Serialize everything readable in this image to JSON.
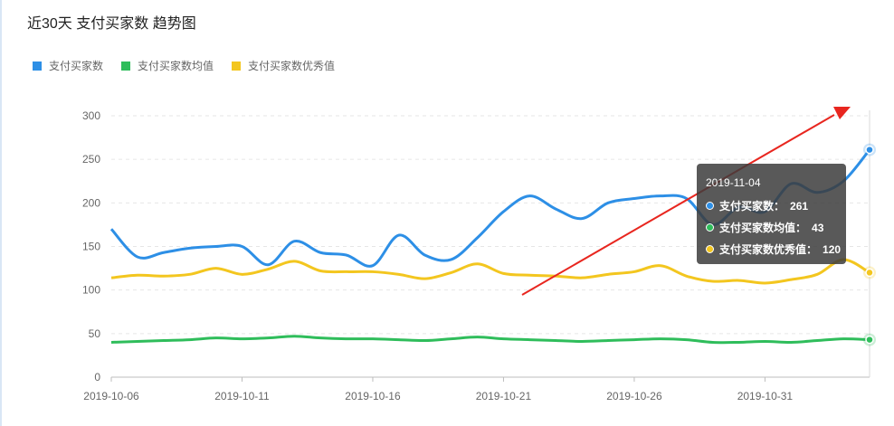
{
  "title": "近30天 支付买家数 趋势图",
  "legend": [
    {
      "label": "支付买家数",
      "color": "#2d8fe6"
    },
    {
      "label": "支付买家数均值",
      "color": "#2fbd5b"
    },
    {
      "label": "支付买家数优秀值",
      "color": "#f3c61f"
    }
  ],
  "tooltip": {
    "date": "2019-11-04",
    "rows": [
      {
        "label": "支付买家数：",
        "value": "261",
        "color": "#2d8fe6"
      },
      {
        "label": "支付买家数均值：",
        "value": "43",
        "color": "#2fbd5b"
      },
      {
        "label": "支付买家数优秀值：",
        "value": "120",
        "color": "#f3c61f"
      }
    ]
  },
  "chart_data": {
    "type": "line",
    "title": "近30天 支付买家数 趋势图",
    "xlabel": "",
    "ylabel": "",
    "ylim": [
      0,
      300
    ],
    "yticks": [
      0,
      50,
      100,
      150,
      200,
      250,
      300
    ],
    "x": [
      "2019-10-06",
      "2019-10-07",
      "2019-10-08",
      "2019-10-09",
      "2019-10-10",
      "2019-10-11",
      "2019-10-12",
      "2019-10-13",
      "2019-10-14",
      "2019-10-15",
      "2019-10-16",
      "2019-10-17",
      "2019-10-18",
      "2019-10-19",
      "2019-10-20",
      "2019-10-21",
      "2019-10-22",
      "2019-10-23",
      "2019-10-24",
      "2019-10-25",
      "2019-10-26",
      "2019-10-27",
      "2019-10-28",
      "2019-10-29",
      "2019-10-30",
      "2019-10-31",
      "2019-11-01",
      "2019-11-02",
      "2019-11-03",
      "2019-11-04"
    ],
    "xtick_labels": [
      "2019-10-06",
      "2019-10-11",
      "2019-10-16",
      "2019-10-21",
      "2019-10-26",
      "2019-10-31"
    ],
    "grid": true,
    "legend_position": "top-left",
    "series": [
      {
        "name": "支付买家数",
        "color": "#2d8fe6",
        "values": [
          170,
          138,
          143,
          148,
          150,
          150,
          129,
          156,
          143,
          140,
          128,
          163,
          140,
          135,
          160,
          190,
          208,
          193,
          182,
          200,
          205,
          208,
          205,
          175,
          195,
          190,
          222,
          212,
          225,
          261
        ]
      },
      {
        "name": "支付买家数均值",
        "color": "#2fbd5b",
        "values": [
          40,
          41,
          42,
          43,
          45,
          44,
          45,
          47,
          45,
          44,
          44,
          43,
          42,
          44,
          46,
          44,
          43,
          42,
          41,
          42,
          43,
          44,
          43,
          40,
          40,
          41,
          40,
          42,
          44,
          43
        ]
      },
      {
        "name": "支付买家数优秀值",
        "color": "#f3c61f",
        "values": [
          114,
          117,
          116,
          118,
          125,
          118,
          124,
          133,
          122,
          121,
          121,
          118,
          113,
          120,
          130,
          119,
          117,
          116,
          114,
          118,
          121,
          128,
          116,
          110,
          111,
          108,
          112,
          118,
          135,
          120
        ]
      }
    ]
  }
}
